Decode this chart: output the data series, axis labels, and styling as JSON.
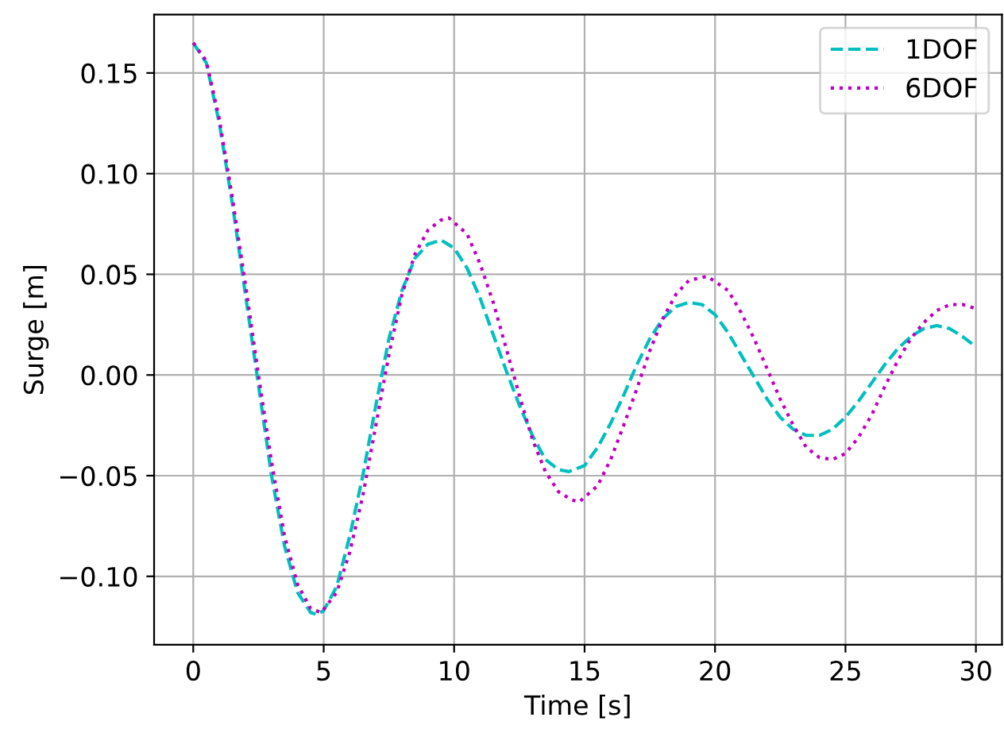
{
  "chart_data": {
    "type": "line",
    "xlabel": "Time [s]",
    "ylabel": "Surge [m]",
    "xlim": [
      -1.5,
      31.0
    ],
    "ylim": [
      -0.134,
      0.179
    ],
    "xticks": [
      0,
      5,
      10,
      15,
      20,
      25,
      30
    ],
    "yticks": [
      {
        "value": -0.1,
        "label": "−0.10"
      },
      {
        "value": -0.05,
        "label": "−0.05"
      },
      {
        "value": 0,
        "label": "0.00"
      },
      {
        "value": 0.05,
        "label": "0.05"
      },
      {
        "value": 0.1,
        "label": "0.10"
      },
      {
        "value": 0.15,
        "label": "0.15"
      }
    ],
    "grid": true,
    "legend": "top right",
    "series": [
      {
        "name": "1DOF",
        "color": "#00bfbf",
        "line_style": "dashed",
        "x": [
          0,
          0.5,
          1,
          1.5,
          2,
          2.5,
          3,
          3.5,
          4,
          4.5,
          4.75,
          5,
          5.5,
          6,
          6.5,
          7,
          7.5,
          8,
          8.5,
          9,
          9.5,
          10,
          10.5,
          11,
          11.5,
          12,
          12.5,
          13,
          13.5,
          14,
          14.4,
          15,
          15.5,
          16,
          16.5,
          17,
          17.5,
          18,
          18.5,
          19,
          19.5,
          20,
          20.5,
          21,
          21.5,
          22,
          22.5,
          23,
          23.5,
          24,
          24.5,
          25,
          25.5,
          26,
          26.5,
          27,
          27.5,
          28,
          28.5,
          29,
          29.5,
          30
        ],
        "values": [
          0.165,
          0.155,
          0.125,
          0.085,
          0.04,
          -0.005,
          -0.05,
          -0.085,
          -0.108,
          -0.118,
          -0.119,
          -0.117,
          -0.105,
          -0.08,
          -0.05,
          -0.015,
          0.018,
          0.042,
          0.058,
          0.065,
          0.067,
          0.063,
          0.053,
          0.038,
          0.02,
          0.002,
          -0.015,
          -0.03,
          -0.042,
          -0.047,
          -0.048,
          -0.045,
          -0.036,
          -0.024,
          -0.01,
          0.005,
          0.018,
          0.028,
          0.034,
          0.036,
          0.035,
          0.03,
          0.021,
          0.01,
          -0.001,
          -0.012,
          -0.021,
          -0.027,
          -0.03,
          -0.03,
          -0.027,
          -0.021,
          -0.013,
          -0.004,
          0.005,
          0.013,
          0.019,
          0.023,
          0.0245,
          0.023,
          0.019,
          0.014
        ]
      },
      {
        "name": "6DOF",
        "color": "#bf00bf",
        "line_style": "dotted",
        "x": [
          0,
          0.5,
          1,
          1.5,
          2,
          2.5,
          3,
          3.5,
          4,
          4.5,
          4.9,
          5.5,
          6,
          6.5,
          7,
          7.5,
          8,
          8.5,
          9,
          9.5,
          9.8,
          10.5,
          11,
          11.5,
          12,
          12.5,
          13,
          13.5,
          14,
          14.5,
          14.8,
          15.5,
          16,
          16.5,
          17,
          17.5,
          18,
          18.5,
          19,
          19.7,
          20.5,
          21,
          21.5,
          22,
          22.5,
          23,
          23.5,
          24,
          24.5,
          25,
          25.5,
          26,
          26.5,
          27,
          27.5,
          28,
          28.5,
          29,
          29.5,
          30
        ],
        "values": [
          0.165,
          0.156,
          0.127,
          0.088,
          0.045,
          0.0,
          -0.043,
          -0.08,
          -0.104,
          -0.116,
          -0.118,
          -0.108,
          -0.088,
          -0.06,
          -0.025,
          0.01,
          0.04,
          0.06,
          0.072,
          0.077,
          0.078,
          0.07,
          0.055,
          0.036,
          0.013,
          -0.01,
          -0.032,
          -0.048,
          -0.058,
          -0.062,
          -0.063,
          -0.055,
          -0.042,
          -0.025,
          -0.007,
          0.012,
          0.028,
          0.04,
          0.047,
          0.049,
          0.042,
          0.031,
          0.018,
          0.003,
          -0.012,
          -0.025,
          -0.036,
          -0.041,
          -0.042,
          -0.039,
          -0.031,
          -0.02,
          -0.006,
          0.007,
          0.018,
          0.026,
          0.032,
          0.035,
          0.035,
          0.033
        ]
      }
    ]
  }
}
